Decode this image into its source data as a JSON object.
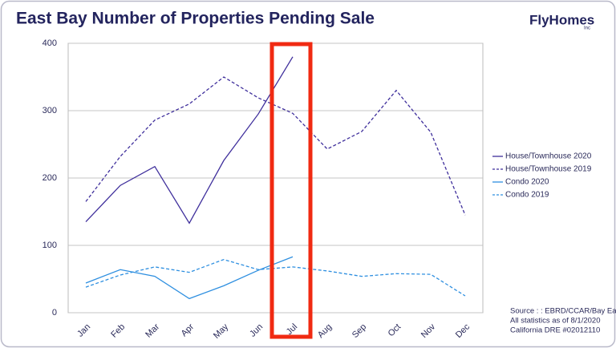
{
  "chart_data": {
    "type": "line",
    "title": "East Bay Number of Properties Pending Sale",
    "logo": "FlyHomes",
    "logo_suffix": "Inc",
    "source": [
      "Source : : EBRD/CCAR/Bay East",
      "All statistics as of 8/1/2020",
      "California DRE #02012110"
    ],
    "categories": [
      "Jan",
      "Feb",
      "Mar",
      "Apr",
      "May",
      "Jun",
      "Jul",
      "Aug",
      "Sep",
      "Oct",
      "Nov",
      "Dec"
    ],
    "series": [
      {
        "name": "House/Townhouse 2020",
        "color": "#3f2f9c",
        "dash": false,
        "values": [
          135,
          189,
          217,
          133,
          226,
          295,
          380,
          null,
          null,
          null,
          null,
          null
        ]
      },
      {
        "name": "House/Townhouse 2019",
        "color": "#3f2f9c",
        "dash": true,
        "values": [
          165,
          232,
          286,
          310,
          350,
          319,
          296,
          243,
          269,
          330,
          268,
          145
        ]
      },
      {
        "name": "Condo 2020",
        "color": "#2e8fe0",
        "dash": false,
        "values": [
          44,
          64,
          54,
          21,
          40,
          63,
          83,
          null,
          null,
          null,
          null,
          null
        ]
      },
      {
        "name": "Condo 2019",
        "color": "#2e8fe0",
        "dash": true,
        "values": [
          38,
          56,
          68,
          60,
          79,
          64,
          68,
          62,
          54,
          58,
          57,
          25
        ]
      }
    ],
    "ylim": [
      0,
      400
    ],
    "yticks": [
      0,
      100,
      200,
      300,
      400
    ],
    "grid": true,
    "legend": "right"
  }
}
